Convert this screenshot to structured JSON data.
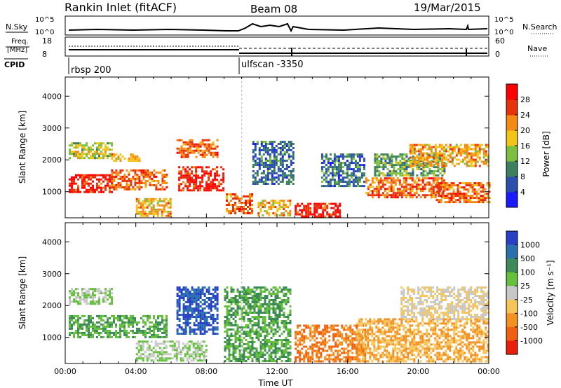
{
  "header": {
    "station": "Rankin Inlet (fitACF)",
    "beam": "Beam 08",
    "date": "19/Mar/2015"
  },
  "top_panels": {
    "nsky_label": "N.Sky",
    "nsearch_label": "N.Search",
    "nsky_ticks": [
      "10^5",
      "10^0"
    ],
    "freq_label_1": "Freq.",
    "freq_label_2": "[MHz]",
    "freq_ticks": [
      "18",
      "8"
    ],
    "nave_label": "Nave",
    "nave_ticks": [
      "60",
      "0"
    ],
    "cpid_label": "CPID",
    "cpid_segments": [
      {
        "name": "rbsp 200",
        "start_hour": 0
      },
      {
        "name": "ulfscan -3350",
        "start_hour": 10
      }
    ]
  },
  "chart_data": [
    {
      "type": "heatmap",
      "name": "power",
      "ylabel": "Slant Range [km]",
      "ylim": [
        180,
        4600
      ],
      "yticks": [
        1000,
        2000,
        3000,
        4000
      ],
      "colorbar": {
        "label": "Power [dB]",
        "ticks": [
          4,
          8,
          12,
          16,
          20,
          24,
          28
        ],
        "colors": [
          "#1a1aff",
          "#2a4fae",
          "#3c8060",
          "#7cbf3f",
          "#f2c418",
          "#f48a14",
          "#e8320a",
          "#ff0000"
        ],
        "range": [
          0,
          32
        ]
      },
      "regions": [
        {
          "x": [
            0.2,
            2.6
          ],
          "y": [
            2050,
            2550
          ],
          "value": 16
        },
        {
          "x": [
            0.2,
            2.6
          ],
          "y": [
            1000,
            1550
          ],
          "value": 28
        },
        {
          "x": [
            2.6,
            5.7
          ],
          "y": [
            1100,
            1700
          ],
          "value": 24
        },
        {
          "x": [
            2.6,
            4.2
          ],
          "y": [
            2000,
            2200
          ],
          "value": 20
        },
        {
          "x": [
            6.3,
            8.6
          ],
          "y": [
            2100,
            2650
          ],
          "value": 24
        },
        {
          "x": [
            6.4,
            9.0
          ],
          "y": [
            1050,
            1800
          ],
          "value": 28
        },
        {
          "x": [
            4.0,
            6.0
          ],
          "y": [
            250,
            800
          ],
          "value": 20
        },
        {
          "x": [
            9.1,
            10.6
          ],
          "y": [
            300,
            950
          ],
          "value": 24
        },
        {
          "x": [
            10.6,
            12.9
          ],
          "y": [
            1250,
            2600
          ],
          "value": 8
        },
        {
          "x": [
            10.9,
            12.8
          ],
          "y": [
            250,
            750
          ],
          "value": 20
        },
        {
          "x": [
            13.0,
            15.6
          ],
          "y": [
            250,
            650
          ],
          "value": 28
        },
        {
          "x": [
            14.5,
            17.0
          ],
          "y": [
            1200,
            2200
          ],
          "value": 8
        },
        {
          "x": [
            17.0,
            21.5
          ],
          "y": [
            800,
            1450
          ],
          "value": 24
        },
        {
          "x": [
            17.5,
            21.5
          ],
          "y": [
            1500,
            2200
          ],
          "value": 12
        },
        {
          "x": [
            19.5,
            24.0
          ],
          "y": [
            1800,
            2500
          ],
          "value": 20
        },
        {
          "x": [
            21.0,
            24.0
          ],
          "y": [
            700,
            1300
          ],
          "value": 24
        }
      ]
    },
    {
      "type": "heatmap",
      "name": "velocity",
      "ylabel": "Slant Range [km]",
      "xlabel": "Time UT",
      "ylim": [
        180,
        4600
      ],
      "yticks": [
        1000,
        2000,
        3000,
        4000
      ],
      "xticks": [
        "00:00",
        "04:00",
        "08:00",
        "12:00",
        "16:00",
        "20:00",
        "00:00"
      ],
      "xlim": [
        0,
        24
      ],
      "colorbar": {
        "label": "Velocity [m s⁻¹]",
        "ticks": [
          1000,
          500,
          100,
          25,
          -25,
          -100,
          -500,
          -1000
        ],
        "colors": [
          "#2a3fc8",
          "#2a6fae",
          "#3c8a5a",
          "#64c03a",
          "#c8c8c8",
          "#f5c55a",
          "#f29020",
          "#f06010",
          "#e81e0a"
        ]
      },
      "regions": [
        {
          "x": [
            0.2,
            2.6
          ],
          "y": [
            2050,
            2550
          ],
          "value": 25
        },
        {
          "x": [
            0.2,
            5.7
          ],
          "y": [
            1000,
            1700
          ],
          "value": 100
        },
        {
          "x": [
            6.3,
            8.6
          ],
          "y": [
            1100,
            2600
          ],
          "value": 1000
        },
        {
          "x": [
            4.0,
            8.0
          ],
          "y": [
            250,
            900
          ],
          "value": 25
        },
        {
          "x": [
            9.0,
            12.8
          ],
          "y": [
            250,
            2600
          ],
          "value": 100
        },
        {
          "x": [
            13.0,
            17.0
          ],
          "y": [
            250,
            1400
          ],
          "value": -500
        },
        {
          "x": [
            16.5,
            24.0
          ],
          "y": [
            250,
            1600
          ],
          "value": -100
        },
        {
          "x": [
            19.0,
            24.0
          ],
          "y": [
            1600,
            2600
          ],
          "value": -25
        }
      ]
    }
  ]
}
